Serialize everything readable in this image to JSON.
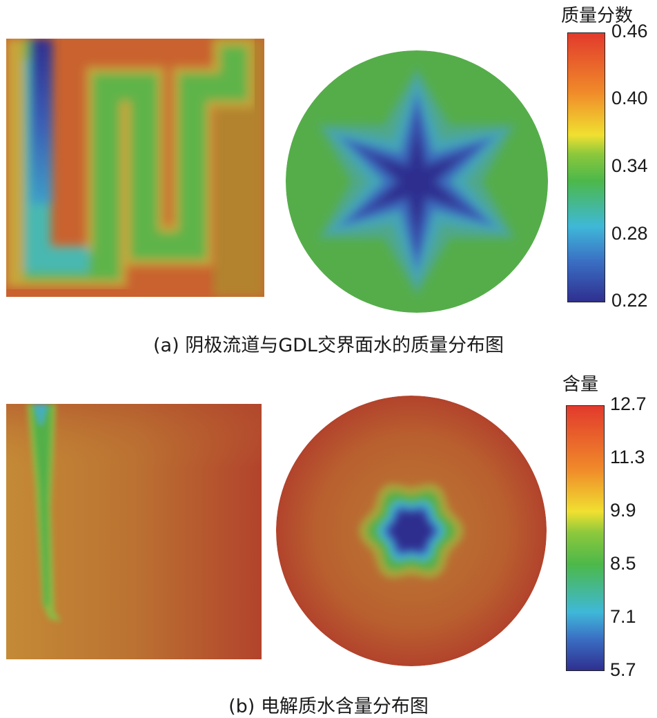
{
  "panel_a": {
    "caption": "(a) 阴极流道与GDL交界面水的质量分布图",
    "colorbar_title": "质量分数",
    "colorbar_ticks": [
      "0.46",
      "0.40",
      "0.34",
      "0.28",
      "0.22"
    ],
    "colorbar_range": [
      0.22,
      0.46
    ]
  },
  "panel_b": {
    "caption": "(b) 电解质水含量分布图",
    "colorbar_title": "含量",
    "colorbar_ticks": [
      "12.7",
      "11.3",
      "9.9",
      "8.5",
      "7.1",
      "5.7"
    ],
    "colorbar_range": [
      5.7,
      12.7
    ]
  },
  "colormap": [
    "#2f2f8f",
    "#3a6fc4",
    "#3fb8d8",
    "#4cb84a",
    "#8cc83c",
    "#f0e030",
    "#f08a2a",
    "#e23a2c"
  ]
}
